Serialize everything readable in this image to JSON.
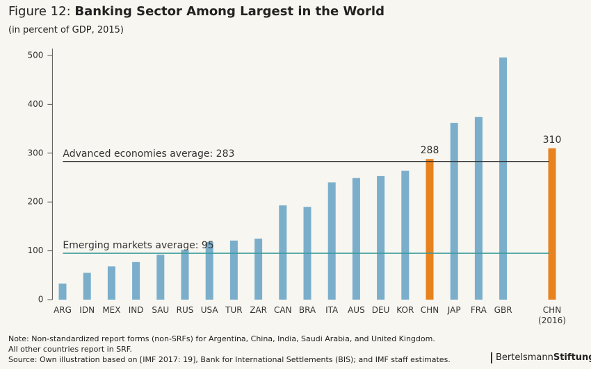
{
  "chart_data": {
    "type": "bar",
    "title_prefix": "Figure 12:",
    "title": "Banking Sector Among Largest in the World",
    "subtitle": "(in percent of GDP, 2015)",
    "categories": [
      "ARG",
      "IDN",
      "MEX",
      "IND",
      "SAU",
      "RUS",
      "USA",
      "TUR",
      "ZAR",
      "CAN",
      "BRA",
      "ITA",
      "AUS",
      "DEU",
      "KOR",
      "CHN",
      "JAP",
      "FRA",
      "GBR",
      null,
      "CHN\n(2016)"
    ],
    "values": [
      33,
      55,
      68,
      77,
      92,
      102,
      118,
      121,
      125,
      193,
      190,
      240,
      249,
      253,
      264,
      288,
      362,
      374,
      496,
      null,
      310
    ],
    "value_labels": [
      null,
      null,
      null,
      null,
      null,
      null,
      null,
      null,
      null,
      null,
      null,
      null,
      null,
      null,
      null,
      "288",
      null,
      null,
      null,
      null,
      "310"
    ],
    "colors": [
      "#7aaecb",
      "#7aaecb",
      "#7aaecb",
      "#7aaecb",
      "#7aaecb",
      "#7aaecb",
      "#7aaecb",
      "#7aaecb",
      "#7aaecb",
      "#7aaecb",
      "#7aaecb",
      "#7aaecb",
      "#7aaecb",
      "#7aaecb",
      "#7aaecb",
      "#e8821e",
      "#7aaecb",
      "#7aaecb",
      "#7aaecb",
      null,
      "#e8821e"
    ],
    "ylim": [
      0,
      500
    ],
    "yticks": [
      0,
      100,
      200,
      300,
      400,
      500
    ],
    "reference_lines": [
      {
        "label": "Advanced economies average: 283",
        "value": 283,
        "color": "#333333"
      },
      {
        "label": "Emerging markets average: 95",
        "value": 95,
        "color": "#3a9a9a"
      }
    ],
    "notes": [
      "Note: Non-standardized report forms (non-SRFs) for Argentina, China, India, Saudi Arabia, and United Kingdom.",
      "All other countries report in SRF.",
      "Source: Own illustration based on [IMF 2017: 19], Bank for International Settlements (BIS); and IMF staff estimates."
    ],
    "brand": [
      "Bertelsmann",
      "Stiftung"
    ]
  }
}
